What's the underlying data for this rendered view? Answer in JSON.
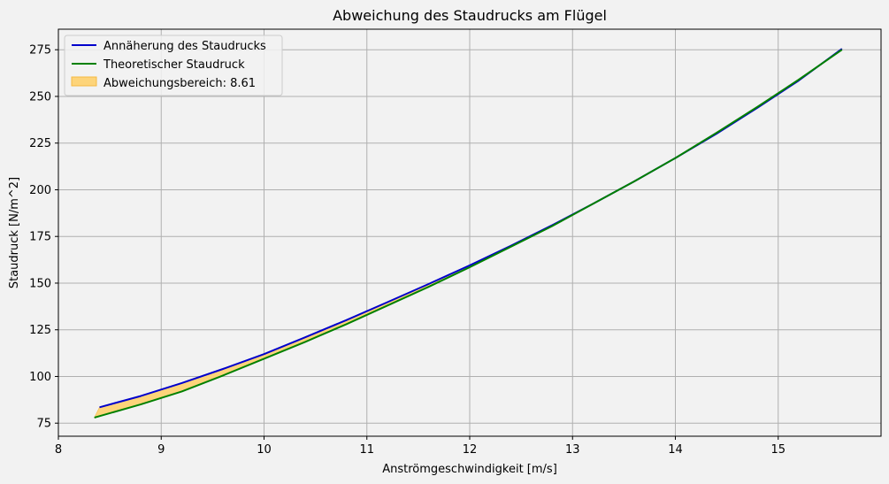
{
  "chart_data": {
    "type": "line",
    "title": "Abweichung des Staudrucks am Flügel",
    "xlabel": "Anströmgeschwindigkeit [m/s]",
    "ylabel": "Staudruck [N/m^2]",
    "xlim": [
      8,
      16
    ],
    "ylim": [
      68,
      286
    ],
    "xticks": [
      8,
      9,
      10,
      11,
      12,
      13,
      14,
      15
    ],
    "yticks": [
      75,
      100,
      125,
      150,
      175,
      200,
      225,
      250,
      275
    ],
    "grid": true,
    "legend_position": "upper-left",
    "series": [
      {
        "name": "Annäherung des Staudrucks",
        "color": "#0000cc",
        "x": [
          8.4,
          8.8,
          9.2,
          9.6,
          10.0,
          10.4,
          10.8,
          11.2,
          11.6,
          12.0,
          12.4,
          12.8,
          13.2,
          13.6,
          14.0,
          14.4,
          14.8,
          15.2,
          15.62
        ],
        "y": [
          83.5,
          89.5,
          96.5,
          104.0,
          112.0,
          121.0,
          130.2,
          139.8,
          149.5,
          159.5,
          170.0,
          181.0,
          192.5,
          204.5,
          217.0,
          230.0,
          244.0,
          258.5,
          275.5
        ]
      },
      {
        "name": "Theoretischer Staudruck",
        "color": "#008000",
        "x": [
          8.35,
          8.8,
          9.2,
          9.6,
          10.0,
          10.4,
          10.8,
          11.2,
          11.6,
          12.0,
          12.4,
          12.8,
          13.2,
          13.6,
          14.0,
          14.4,
          14.8,
          15.2,
          15.62
        ],
        "y": [
          78.0,
          85.0,
          92.0,
          100.5,
          109.5,
          118.5,
          128.0,
          138.0,
          148.0,
          158.5,
          169.5,
          180.5,
          192.5,
          204.5,
          217.0,
          230.5,
          244.5,
          259.0,
          275.0
        ]
      }
    ],
    "fill_between": {
      "name": "Abweichungsbereich: 8.61",
      "color": "#fdd47a",
      "edge_color": "#f5b942"
    }
  }
}
